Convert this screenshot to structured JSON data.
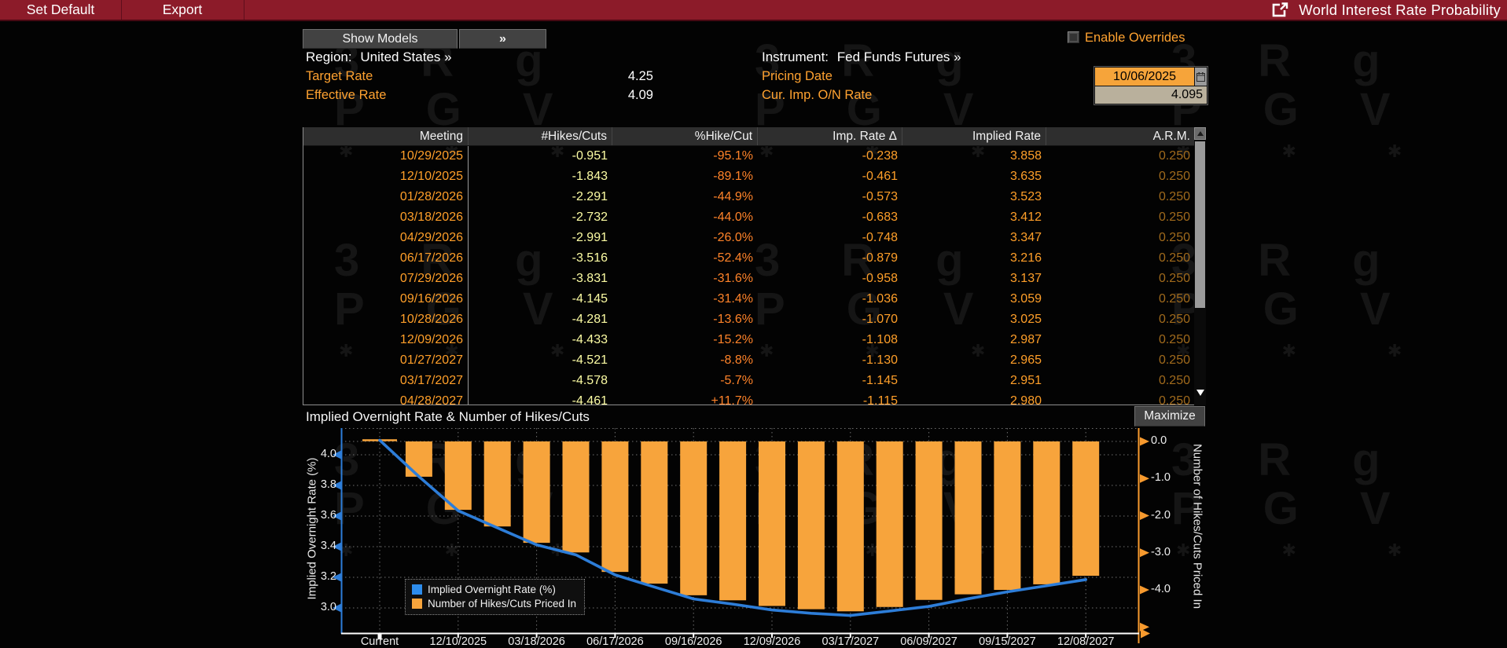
{
  "titlebar": {
    "set_default": "Set Default",
    "export": "Export",
    "title": "World Interest Rate Probability"
  },
  "controls": {
    "show_models": "Show Models",
    "expand": "»",
    "region_label": "Region:",
    "region_value": "United States »",
    "target_rate_label": "Target Rate",
    "target_rate_value": "4.25",
    "effective_rate_label": "Effective Rate",
    "effective_rate_value": "4.09",
    "instrument_label": "Instrument:",
    "instrument_value": "Fed Funds Futures »",
    "pricing_date_label": "Pricing Date",
    "pricing_date_value": "10/06/2025",
    "cur_imp_label": "Cur. Imp. O/N Rate",
    "cur_imp_value": "4.095",
    "enable_overrides": "Enable Overrides"
  },
  "table": {
    "columns": [
      "Meeting",
      "#Hikes/Cuts",
      "%Hike/Cut",
      "Imp. Rate Δ",
      "Implied Rate",
      "A.R.M."
    ],
    "rows": [
      [
        "10/29/2025",
        "-0.951",
        "-95.1%",
        "-0.238",
        "3.858",
        "0.250"
      ],
      [
        "12/10/2025",
        "-1.843",
        "-89.1%",
        "-0.461",
        "3.635",
        "0.250"
      ],
      [
        "01/28/2026",
        "-2.291",
        "-44.9%",
        "-0.573",
        "3.523",
        "0.250"
      ],
      [
        "03/18/2026",
        "-2.732",
        "-44.0%",
        "-0.683",
        "3.412",
        "0.250"
      ],
      [
        "04/29/2026",
        "-2.991",
        "-26.0%",
        "-0.748",
        "3.347",
        "0.250"
      ],
      [
        "06/17/2026",
        "-3.516",
        "-52.4%",
        "-0.879",
        "3.216",
        "0.250"
      ],
      [
        "07/29/2026",
        "-3.831",
        "-31.6%",
        "-0.958",
        "3.137",
        "0.250"
      ],
      [
        "09/16/2026",
        "-4.145",
        "-31.4%",
        "-1.036",
        "3.059",
        "0.250"
      ],
      [
        "10/28/2026",
        "-4.281",
        "-13.6%",
        "-1.070",
        "3.025",
        "0.250"
      ],
      [
        "12/09/2026",
        "-4.433",
        "-15.2%",
        "-1.108",
        "2.987",
        "0.250"
      ],
      [
        "01/27/2027",
        "-4.521",
        "-8.8%",
        "-1.130",
        "2.965",
        "0.250"
      ],
      [
        "03/17/2027",
        "-4.578",
        "-5.7%",
        "-1.145",
        "2.951",
        "0.250"
      ],
      [
        "04/28/2027",
        "-4.461",
        "+11.7%",
        "-1.115",
        "2.980",
        "0.250"
      ]
    ]
  },
  "chart": {
    "title": "Implied Overnight Rate & Number of Hikes/Cuts",
    "maximize": "Maximize"
  },
  "chart_data": {
    "type": "bar",
    "title": "Implied Overnight Rate & Number of Hikes/Cuts",
    "x_tick_labels": [
      "Current",
      "12/10/2025",
      "03/18/2026",
      "06/17/2026",
      "09/16/2026",
      "12/09/2026",
      "03/17/2027",
      "06/09/2027",
      "09/15/2027",
      "12/08/2027"
    ],
    "left_axis": {
      "label": "Implied Overnight Rate (%)",
      "ticks": [
        4.0,
        3.8,
        3.6,
        3.4,
        3.2,
        3.0
      ],
      "range": [
        2.83,
        4.17
      ]
    },
    "right_axis": {
      "label": "Number of Hikes/Cuts Priced In",
      "ticks": [
        0.0,
        -1.0,
        -2.0,
        -3.0,
        -4.0
      ],
      "range": [
        -5.19,
        0.36
      ]
    },
    "series": [
      {
        "name": "Implied Overnight Rate (%)",
        "type": "line",
        "axis": "left",
        "color": "#2d7dd8",
        "values": [
          4.095,
          3.858,
          3.635,
          3.523,
          3.412,
          3.347,
          3.216,
          3.137,
          3.059,
          3.025,
          2.987,
          2.965,
          2.951,
          2.98,
          3.01,
          3.06,
          3.105,
          3.145,
          3.185
        ]
      },
      {
        "name": "Number of Hikes/Cuts Priced In",
        "type": "bar",
        "axis": "right",
        "color": "#f7a43c",
        "values": [
          null,
          -0.951,
          -1.843,
          -2.291,
          -2.732,
          -2.991,
          -3.516,
          -3.831,
          -4.145,
          -4.281,
          -4.433,
          -4.521,
          -4.578,
          -4.461,
          -4.27,
          -4.12,
          -4.0,
          -3.85,
          -3.62
        ]
      }
    ],
    "legend": [
      "Implied Overnight Rate (%)",
      "Number of Hikes/Cuts Priced In"
    ],
    "legend_position": "inside-bottom-left",
    "grid": true,
    "current_rate_marker": 4.095
  },
  "colors": {
    "topbar_red": "#8c1b29",
    "orange_label": "#ffa230",
    "date_field_bg": "#f6a43a",
    "rate_field_bg": "#b9b09c",
    "bar_orange": "#f7a43c",
    "line_blue": "#2d7dd8",
    "hikes_yellow": "#fdfda4",
    "pct_orange": "#ff8329",
    "arm_dim_orange": "#a06a1c"
  },
  "watermark": {
    "glyph_rows": [
      [
        "3",
        "R",
        "g"
      ],
      [
        "P",
        "G",
        "V"
      ],
      [
        "✱",
        "✱",
        "✱"
      ]
    ]
  }
}
